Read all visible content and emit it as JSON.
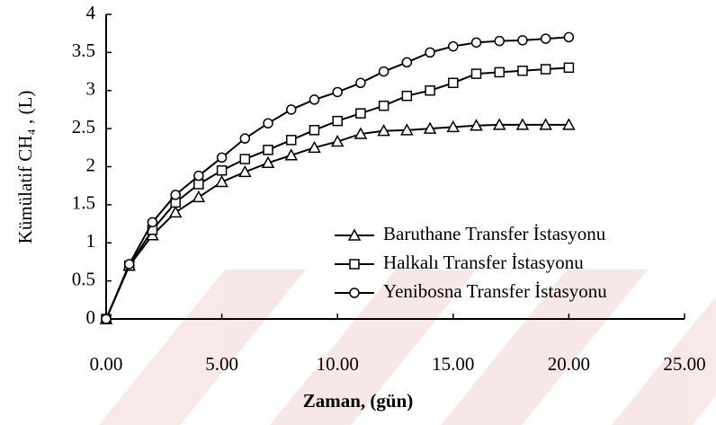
{
  "chart_data": {
    "type": "line",
    "xlabel": "Zaman, (gün)",
    "ylabel": "Kümülatif CH₄ , (L)",
    "x": [
      0,
      1,
      2,
      3,
      4,
      5,
      6,
      7,
      8,
      9,
      10,
      11,
      12,
      13,
      14,
      15,
      16,
      17,
      18,
      19,
      20
    ],
    "series": [
      {
        "name": "Baruthane Transfer İstasyonu",
        "color": "#000000",
        "marker": "triangle",
        "values": [
          0,
          0.7,
          1.1,
          1.4,
          1.6,
          1.8,
          1.93,
          2.05,
          2.15,
          2.25,
          2.33,
          2.43,
          2.47,
          2.48,
          2.5,
          2.52,
          2.54,
          2.55,
          2.55,
          2.55,
          2.55
        ]
      },
      {
        "name": "Halkalı Transfer İstasyonu",
        "color": "#000000",
        "marker": "square",
        "values": [
          0,
          0.7,
          1.17,
          1.53,
          1.77,
          1.95,
          2.1,
          2.22,
          2.35,
          2.48,
          2.6,
          2.7,
          2.8,
          2.93,
          3.0,
          3.1,
          3.22,
          3.24,
          3.26,
          3.28,
          3.3
        ]
      },
      {
        "name": "Yenibosna Transfer İstasyonu",
        "color": "#000000",
        "marker": "circle",
        "values": [
          0,
          0.72,
          1.27,
          1.63,
          1.88,
          2.12,
          2.37,
          2.57,
          2.75,
          2.88,
          2.98,
          3.1,
          3.25,
          3.37,
          3.5,
          3.58,
          3.63,
          3.65,
          3.66,
          3.68,
          3.7
        ]
      }
    ],
    "xlim": [
      0,
      25
    ],
    "xticks": [
      {
        "value": 0,
        "label": "0.00"
      },
      {
        "value": 5,
        "label": "5.00"
      },
      {
        "value": 10,
        "label": "10.00"
      },
      {
        "value": 15,
        "label": "15.00"
      },
      {
        "value": 20,
        "label": "20.00"
      },
      {
        "value": 25,
        "label": "25.00"
      }
    ],
    "ylim": [
      0,
      4
    ],
    "yticks": [
      0,
      0.5,
      1,
      1.5,
      2,
      2.5,
      3,
      3.5,
      4
    ],
    "legend": "lower right"
  }
}
